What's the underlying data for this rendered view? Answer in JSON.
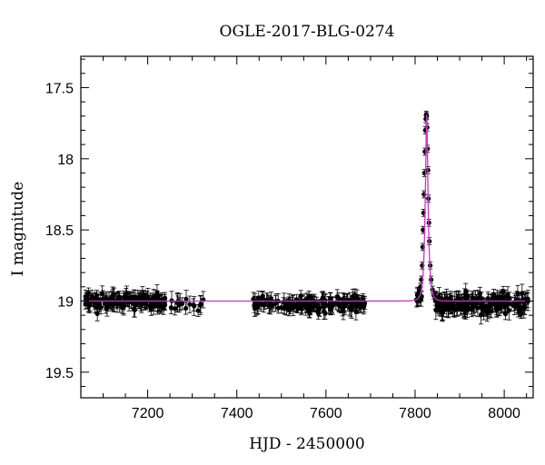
{
  "chart_data": {
    "type": "scatter",
    "title": "OGLE-2017-BLG-0274",
    "xlabel": "HJD - 2450000",
    "ylabel": "I magnitude",
    "xlim": [
      7050,
      8065
    ],
    "ylim": [
      19.68,
      17.28
    ],
    "y_inverted": true,
    "x_ticks": [
      7200,
      7400,
      7600,
      7800,
      8000
    ],
    "x_tick_labels": [
      "7200",
      "7400",
      "7600",
      "7800",
      "8000"
    ],
    "y_ticks": [
      17.5,
      18,
      18.5,
      19,
      19.5
    ],
    "y_tick_labels": [
      "17.5",
      "18",
      "18.5",
      "19",
      "19.5"
    ],
    "grid": false,
    "colors": {
      "points": "#000000",
      "model": "#cc33cc"
    },
    "baseline_mag": 19.0,
    "peak": {
      "t0": 7826,
      "mag": 17.69
    },
    "series": [
      {
        "kind": "points",
        "segments": [
          {
            "x_start": 7060,
            "x_end": 7240,
            "n": 150,
            "mean_mag": 19.0,
            "scatter": 0.06,
            "error": 0.045
          },
          {
            "x_start": 7245,
            "x_end": 7325,
            "n": 18,
            "mean_mag": 19.02,
            "scatter": 0.06,
            "error": 0.05
          },
          {
            "x_start": 7435,
            "x_end": 7690,
            "n": 170,
            "mean_mag": 19.02,
            "scatter": 0.06,
            "error": 0.045
          },
          {
            "x_start": 7800,
            "x_end": 7815,
            "n": 8,
            "mean_mag": 18.98,
            "scatter": 0.05,
            "error": 0.04
          },
          {
            "x_start": 7845,
            "x_end": 8055,
            "n": 190,
            "mean_mag": 19.02,
            "scatter": 0.07,
            "error": 0.05
          }
        ],
        "peak_points": [
          {
            "x": 7809,
            "y": 18.93
          },
          {
            "x": 7812,
            "y": 18.9
          },
          {
            "x": 7814,
            "y": 18.85
          },
          {
            "x": 7816,
            "y": 18.75
          },
          {
            "x": 7817,
            "y": 18.62
          },
          {
            "x": 7818,
            "y": 18.5
          },
          {
            "x": 7819,
            "y": 18.38
          },
          {
            "x": 7820,
            "y": 18.25
          },
          {
            "x": 7821,
            "y": 18.1
          },
          {
            "x": 7822,
            "y": 17.95
          },
          {
            "x": 7823,
            "y": 17.8
          },
          {
            "x": 7824,
            "y": 17.72
          },
          {
            "x": 7825,
            "y": 17.69
          },
          {
            "x": 7826,
            "y": 17.7
          },
          {
            "x": 7827,
            "y": 17.78
          },
          {
            "x": 7828,
            "y": 17.93
          },
          {
            "x": 7829,
            "y": 18.08
          },
          {
            "x": 7830,
            "y": 18.28
          },
          {
            "x": 7831,
            "y": 18.45
          },
          {
            "x": 7832,
            "y": 18.58
          },
          {
            "x": 7834,
            "y": 18.75
          },
          {
            "x": 7836,
            "y": 18.85
          },
          {
            "x": 7839,
            "y": 18.92
          },
          {
            "x": 7842,
            "y": 18.96
          }
        ]
      },
      {
        "kind": "model",
        "description_free": true,
        "baseline": 19.0,
        "t0": 7826,
        "peak_mag": 17.69
      }
    ]
  }
}
